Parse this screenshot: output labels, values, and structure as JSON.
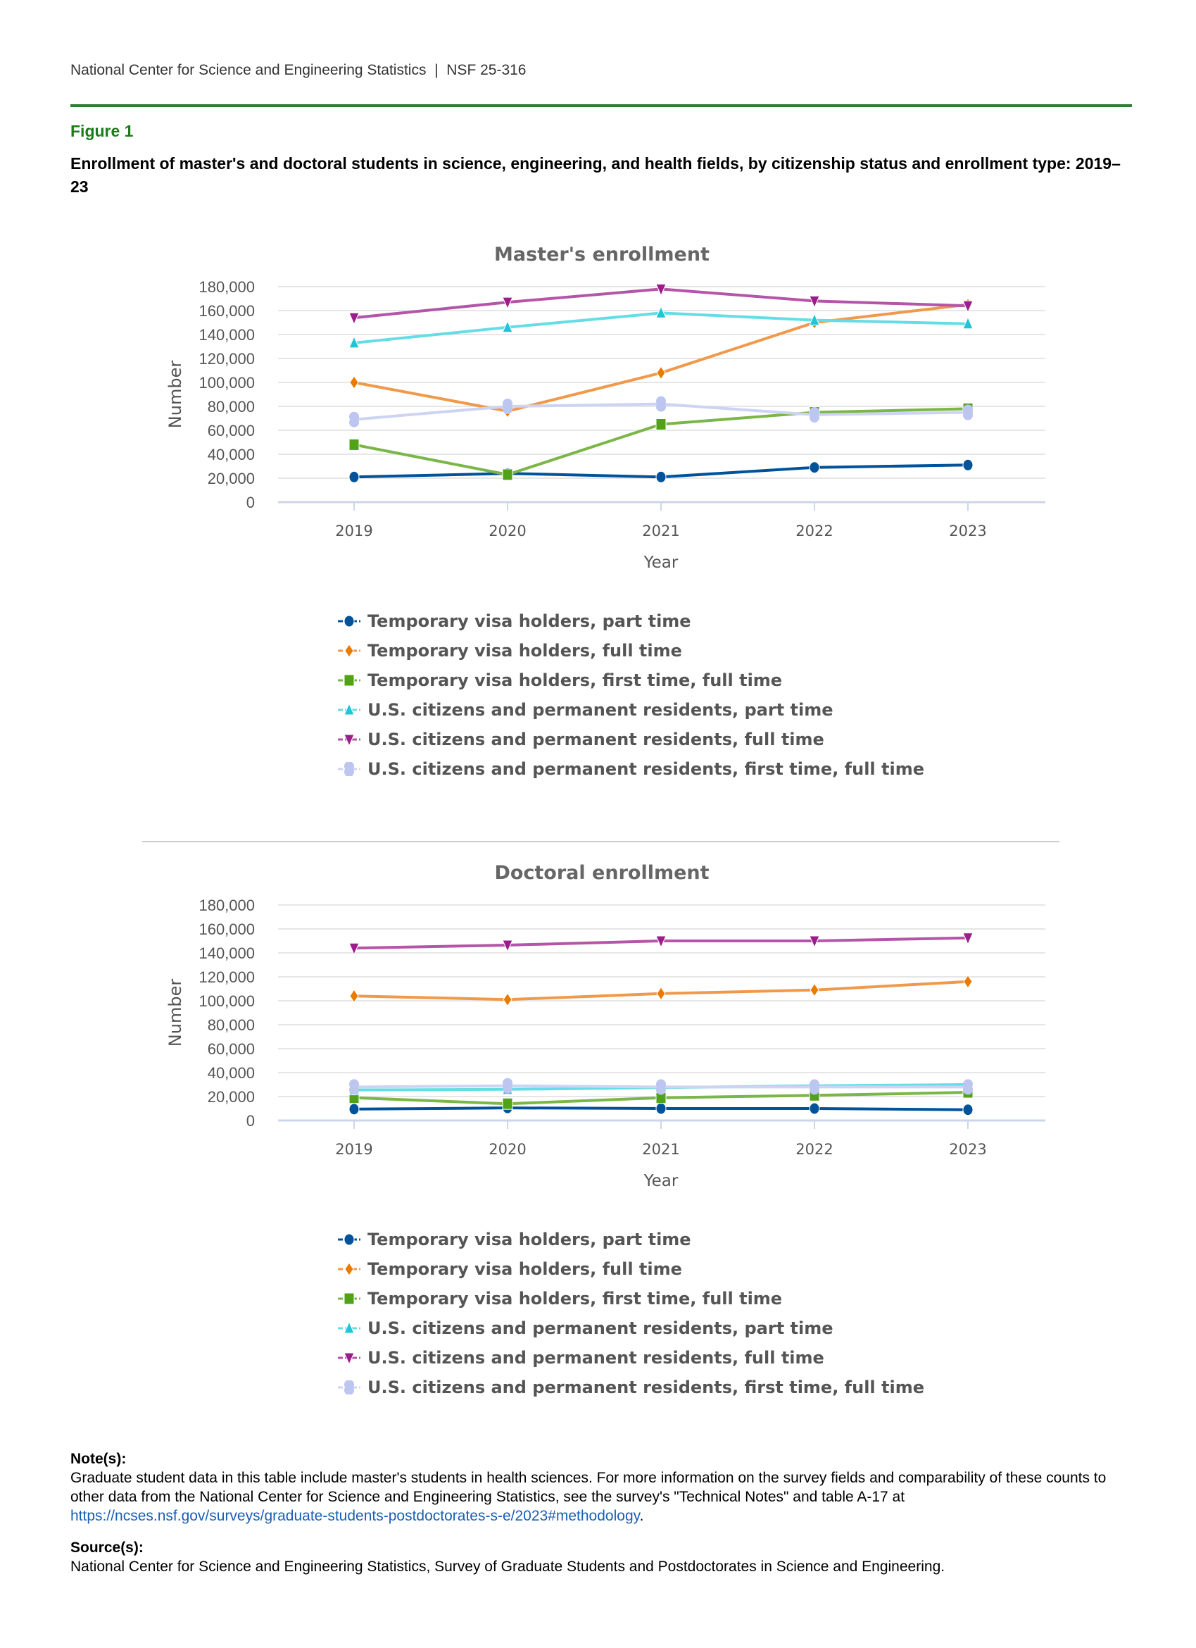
{
  "header": {
    "org": "National Center for Science and Engineering Statistics",
    "separator": "|",
    "report": "NSF 25-316"
  },
  "figure": {
    "label": "Figure 1",
    "title": "Enrollment of master's and doctoral students in science, engineering, and health fields, by citizenship status and enrollment type: 2019–23"
  },
  "series_meta": [
    {
      "name": "Temporary visa holders, part time",
      "color": "#00539b",
      "line": "#00539b",
      "marker": "circle"
    },
    {
      "name": "Temporary visa holders, full time",
      "color": "#e87b00",
      "line": "#f0994a",
      "marker": "diamond"
    },
    {
      "name": "Temporary visa holders, first time, full time",
      "color": "#52a218",
      "line": "#7ab648",
      "marker": "square"
    },
    {
      "name": "U.S. citizens and permanent residents, part time",
      "color": "#21c6d6",
      "line": "#64dde5",
      "marker": "triangle-up"
    },
    {
      "name": "U.S. citizens and permanent residents, full time",
      "color": "#9b1d8a",
      "line": "#b455a8",
      "marker": "triangle-down"
    },
    {
      "name": "U.S. citizens and permanent residents, first time, full time",
      "color": "#bcc6f0",
      "line": "#cdd4f3",
      "marker": "double-circle"
    }
  ],
  "chart_data": [
    {
      "type": "line",
      "title": "Master's enrollment",
      "xlabel": "Year",
      "ylabel": "Number",
      "x": [
        "2019",
        "2020",
        "2021",
        "2022",
        "2023"
      ],
      "ylim": [
        0,
        180000
      ],
      "yticks": [
        "0",
        "20,000",
        "40,000",
        "60,000",
        "80,000",
        "100,000",
        "120,000",
        "140,000",
        "160,000",
        "180,000"
      ],
      "grid": true,
      "legend": "bottom",
      "series": [
        {
          "name": "Temporary visa holders, part time",
          "values": [
            21000,
            24000,
            21000,
            29000,
            31000
          ]
        },
        {
          "name": "Temporary visa holders, full time",
          "values": [
            100000,
            76000,
            108000,
            150000,
            165000
          ]
        },
        {
          "name": "Temporary visa holders, first time, full time",
          "values": [
            48000,
            23000,
            65000,
            75000,
            78000
          ]
        },
        {
          "name": "U.S. citizens and permanent residents, part time",
          "values": [
            133000,
            146000,
            158000,
            152000,
            149000
          ]
        },
        {
          "name": "U.S. citizens and permanent residents, full time",
          "values": [
            154000,
            167000,
            178000,
            168000,
            164000
          ]
        },
        {
          "name": "U.S. citizens and permanent residents, first time, full time",
          "values": [
            69000,
            80000,
            82000,
            73000,
            75000
          ]
        }
      ]
    },
    {
      "type": "line",
      "title": "Doctoral enrollment",
      "xlabel": "Year",
      "ylabel": "Number",
      "x": [
        "2019",
        "2020",
        "2021",
        "2022",
        "2023"
      ],
      "ylim": [
        0,
        180000
      ],
      "yticks": [
        "0",
        "20,000",
        "40,000",
        "60,000",
        "80,000",
        "100,000",
        "120,000",
        "140,000",
        "160,000",
        "180,000"
      ],
      "grid": true,
      "legend": "bottom",
      "series": [
        {
          "name": "Temporary visa holders, part time",
          "values": [
            9500,
            10500,
            10000,
            10000,
            9000
          ]
        },
        {
          "name": "Temporary visa holders, full time",
          "values": [
            104000,
            101000,
            106000,
            109000,
            116000
          ]
        },
        {
          "name": "Temporary visa holders, first time, full time",
          "values": [
            19000,
            14000,
            19000,
            21000,
            23500
          ]
        },
        {
          "name": "U.S. citizens and permanent residents, part time",
          "values": [
            25500,
            26000,
            27500,
            29000,
            30000
          ]
        },
        {
          "name": "U.S. citizens and permanent residents, full time",
          "values": [
            144000,
            146500,
            150000,
            150000,
            152500
          ]
        },
        {
          "name": "U.S. citizens and permanent residents, first time, full time",
          "values": [
            28000,
            29000,
            28000,
            28000,
            28000
          ]
        }
      ]
    }
  ],
  "notes": {
    "label": "Note(s):",
    "text": "Graduate student data in this table include master's students in health sciences. For more information on the survey fields and comparability of these counts to other data from the National Center for Science and Engineering Statistics, see the survey's \"Technical Notes\" and table A-17 at ",
    "link": "https://ncses.nsf.gov/surveys/graduate-students-postdoctorates-s-e/2023#methodology",
    "end": "."
  },
  "sources": {
    "label": "Source(s):",
    "text": "National Center for Science and Engineering Statistics, Survey of Graduate Students and Postdoctorates in Science and Engineering."
  }
}
